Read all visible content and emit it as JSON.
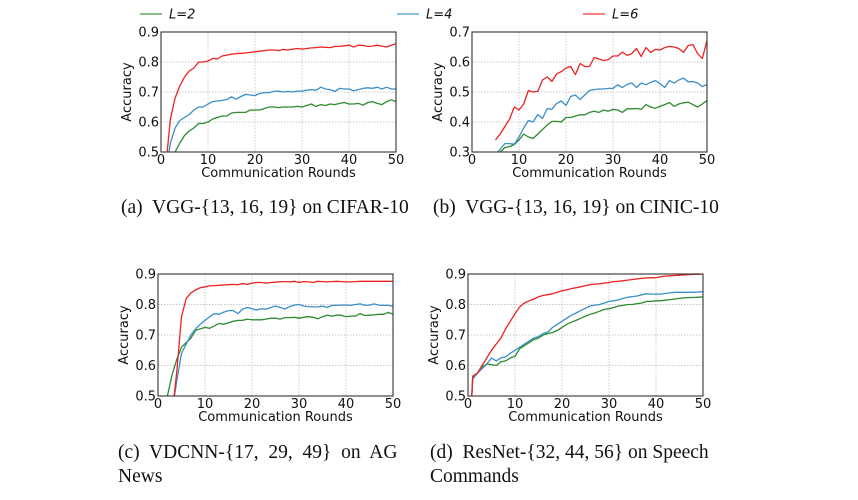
{
  "legend": [
    {
      "label": "L=2",
      "color": "#2e8b2e"
    },
    {
      "label": "L=4",
      "color": "#3a8fc8"
    },
    {
      "label": "L=6",
      "color": "#ee2222"
    }
  ],
  "chart_data": [
    {
      "type": "line",
      "id": "a",
      "caption": "(a)  VGG-{13, 16, 19} on CIFAR-10",
      "xlabel": "Communication Rounds",
      "ylabel": "Accuracy",
      "xlim": [
        0,
        50
      ],
      "ylim": [
        0.5,
        0.9
      ],
      "xticks": [
        0,
        10,
        20,
        30,
        40,
        50
      ],
      "yticks": [
        0.5,
        0.6,
        0.7,
        0.8,
        0.9
      ],
      "ytick_labels": [
        "0.5",
        "0.6",
        "0.7",
        "0.8",
        "0.9"
      ],
      "grid": true,
      "x": [
        1,
        2,
        3,
        4,
        5,
        6,
        7,
        8,
        9,
        10,
        11,
        12,
        13,
        14,
        15,
        16,
        17,
        18,
        19,
        20,
        21,
        22,
        23,
        24,
        25,
        26,
        27,
        28,
        29,
        30,
        31,
        32,
        33,
        34,
        35,
        36,
        37,
        38,
        39,
        40,
        41,
        42,
        43,
        44,
        45,
        46,
        47,
        48,
        49,
        50
      ],
      "series": [
        {
          "name": "L=2",
          "values": [
            0.4,
            0.46,
            0.5,
            0.53,
            0.555,
            0.57,
            0.58,
            0.595,
            0.595,
            0.6,
            0.61,
            0.615,
            0.62,
            0.62,
            0.63,
            0.632,
            0.632,
            0.632,
            0.64,
            0.64,
            0.64,
            0.645,
            0.65,
            0.65,
            0.648,
            0.65,
            0.65,
            0.65,
            0.652,
            0.65,
            0.655,
            0.66,
            0.652,
            0.658,
            0.655,
            0.66,
            0.658,
            0.662,
            0.665,
            0.66,
            0.66,
            0.662,
            0.656,
            0.665,
            0.668,
            0.662,
            0.658,
            0.668,
            0.674,
            0.668
          ]
        },
        {
          "name": "L=4",
          "values": [
            0.43,
            0.53,
            0.58,
            0.605,
            0.615,
            0.625,
            0.64,
            0.65,
            0.65,
            0.66,
            0.668,
            0.67,
            0.672,
            0.675,
            0.684,
            0.676,
            0.685,
            0.692,
            0.69,
            0.688,
            0.695,
            0.698,
            0.698,
            0.702,
            0.703,
            0.7,
            0.702,
            0.7,
            0.703,
            0.703,
            0.706,
            0.708,
            0.706,
            0.716,
            0.71,
            0.708,
            0.702,
            0.712,
            0.71,
            0.71,
            0.704,
            0.708,
            0.712,
            0.714,
            0.712,
            0.716,
            0.71,
            0.716,
            0.71,
            0.71
          ]
        },
        {
          "name": "L=6",
          "values": [
            0.45,
            0.61,
            0.68,
            0.72,
            0.75,
            0.77,
            0.78,
            0.8,
            0.8,
            0.803,
            0.812,
            0.81,
            0.82,
            0.823,
            0.826,
            0.828,
            0.829,
            0.83,
            0.832,
            0.834,
            0.836,
            0.838,
            0.84,
            0.84,
            0.838,
            0.842,
            0.84,
            0.843,
            0.845,
            0.843,
            0.845,
            0.847,
            0.848,
            0.85,
            0.849,
            0.848,
            0.852,
            0.852,
            0.854,
            0.856,
            0.85,
            0.856,
            0.855,
            0.852,
            0.853,
            0.856,
            0.853,
            0.85,
            0.856,
            0.861
          ]
        }
      ]
    },
    {
      "type": "line",
      "id": "b",
      "caption": "(b)  VGG-{13, 16, 19} on CINIC-10",
      "xlabel": "Communication Rounds",
      "ylabel": "Accuracy",
      "xlim": [
        0,
        50
      ],
      "ylim": [
        0.3,
        0.7
      ],
      "xticks": [
        0,
        10,
        20,
        30,
        40,
        50
      ],
      "yticks": [
        0.3,
        0.4,
        0.5,
        0.6,
        0.7
      ],
      "ytick_labels": [
        "0.3",
        "0.4",
        "0.5",
        "0.6",
        "0.7"
      ],
      "grid": true,
      "x": [
        5,
        6,
        7,
        8,
        9,
        10,
        11,
        12,
        13,
        14,
        15,
        16,
        17,
        18,
        19,
        20,
        21,
        22,
        23,
        24,
        25,
        26,
        27,
        28,
        29,
        30,
        31,
        32,
        33,
        34,
        35,
        36,
        37,
        38,
        39,
        40,
        41,
        42,
        43,
        44,
        45,
        46,
        47,
        48,
        49,
        50
      ],
      "series": [
        {
          "name": "L=2",
          "values": [
            0.29,
            0.3,
            0.315,
            0.318,
            0.325,
            0.34,
            0.36,
            0.35,
            0.345,
            0.36,
            0.375,
            0.39,
            0.402,
            0.402,
            0.4,
            0.415,
            0.415,
            0.42,
            0.424,
            0.424,
            0.432,
            0.436,
            0.432,
            0.44,
            0.436,
            0.442,
            0.44,
            0.432,
            0.444,
            0.444,
            0.445,
            0.442,
            0.458,
            0.45,
            0.446,
            0.452,
            0.458,
            0.465,
            0.452,
            0.46,
            0.464,
            0.466,
            0.458,
            0.45,
            0.46,
            0.472
          ]
        },
        {
          "name": "L=4",
          "values": [
            0.29,
            0.31,
            0.328,
            0.328,
            0.326,
            0.35,
            0.38,
            0.405,
            0.4,
            0.425,
            0.412,
            0.445,
            0.442,
            0.462,
            0.47,
            0.455,
            0.485,
            0.49,
            0.475,
            0.49,
            0.505,
            0.508,
            0.51,
            0.51,
            0.512,
            0.512,
            0.524,
            0.515,
            0.525,
            0.53,
            0.515,
            0.53,
            0.524,
            0.532,
            0.538,
            0.528,
            0.515,
            0.538,
            0.53,
            0.54,
            0.546,
            0.534,
            0.535,
            0.53,
            0.518,
            0.525
          ]
        },
        {
          "name": "L=6",
          "values": [
            0.34,
            0.36,
            0.385,
            0.41,
            0.45,
            0.44,
            0.46,
            0.505,
            0.5,
            0.502,
            0.54,
            0.55,
            0.535,
            0.56,
            0.568,
            0.58,
            0.585,
            0.558,
            0.595,
            0.585,
            0.585,
            0.615,
            0.61,
            0.605,
            0.608,
            0.62,
            0.62,
            0.633,
            0.622,
            0.628,
            0.645,
            0.618,
            0.648,
            0.632,
            0.642,
            0.64,
            0.648,
            0.652,
            0.65,
            0.645,
            0.632,
            0.655,
            0.658,
            0.628,
            0.612,
            0.672
          ]
        }
      ]
    },
    {
      "type": "line",
      "id": "c",
      "caption": "(c)  VDCNN-{17,  29,  49}  on  AG\nNews",
      "xlabel": "Communication Rounds",
      "ylabel": "Accuracy",
      "xlim": [
        0,
        50
      ],
      "ylim": [
        0.5,
        0.9
      ],
      "xticks": [
        0,
        10,
        20,
        30,
        40,
        50
      ],
      "yticks": [
        0.5,
        0.6,
        0.7,
        0.8,
        0.9
      ],
      "ytick_labels": [
        "0.5",
        "0.6",
        "0.7",
        "0.8",
        "0.9"
      ],
      "grid": true,
      "x": [
        2,
        3,
        4,
        5,
        6,
        7,
        8,
        9,
        10,
        11,
        12,
        13,
        14,
        15,
        16,
        17,
        18,
        19,
        20,
        21,
        22,
        23,
        24,
        25,
        26,
        27,
        28,
        29,
        30,
        31,
        32,
        33,
        34,
        35,
        36,
        37,
        38,
        39,
        40,
        41,
        42,
        43,
        44,
        45,
        46,
        47,
        48,
        49,
        50
      ],
      "series": [
        {
          "name": "L=2",
          "values": [
            0.5,
            0.57,
            0.62,
            0.66,
            0.675,
            0.69,
            0.715,
            0.72,
            0.725,
            0.722,
            0.73,
            0.738,
            0.735,
            0.74,
            0.745,
            0.748,
            0.748,
            0.752,
            0.75,
            0.75,
            0.75,
            0.752,
            0.755,
            0.755,
            0.752,
            0.757,
            0.757,
            0.758,
            0.755,
            0.758,
            0.76,
            0.758,
            0.753,
            0.76,
            0.765,
            0.762,
            0.765,
            0.765,
            0.76,
            0.762,
            0.762,
            0.77,
            0.764,
            0.765,
            0.766,
            0.768,
            0.768,
            0.774,
            0.768
          ]
        },
        {
          "name": "L=4",
          "values": [
            0.4,
            0.45,
            0.55,
            0.64,
            0.67,
            0.7,
            0.72,
            0.735,
            0.748,
            0.76,
            0.77,
            0.768,
            0.775,
            0.78,
            0.78,
            0.77,
            0.785,
            0.79,
            0.786,
            0.782,
            0.786,
            0.785,
            0.79,
            0.795,
            0.79,
            0.785,
            0.793,
            0.798,
            0.8,
            0.795,
            0.793,
            0.792,
            0.792,
            0.795,
            0.79,
            0.797,
            0.797,
            0.798,
            0.798,
            0.797,
            0.8,
            0.802,
            0.797,
            0.798,
            0.802,
            0.798,
            0.797,
            0.797,
            0.794
          ]
        },
        {
          "name": "L=6",
          "values": [
            0.3,
            0.44,
            0.58,
            0.76,
            0.82,
            0.838,
            0.848,
            0.855,
            0.858,
            0.861,
            0.862,
            0.863,
            0.864,
            0.865,
            0.866,
            0.865,
            0.869,
            0.866,
            0.87,
            0.872,
            0.872,
            0.87,
            0.872,
            0.873,
            0.875,
            0.875,
            0.874,
            0.876,
            0.872,
            0.875,
            0.874,
            0.872,
            0.876,
            0.875,
            0.874,
            0.875,
            0.876,
            0.875,
            0.874,
            0.874,
            0.875,
            0.876,
            0.876,
            0.876,
            0.876,
            0.876,
            0.876,
            0.876,
            0.876
          ]
        }
      ]
    },
    {
      "type": "line",
      "id": "d",
      "caption": "(d)  ResNet-{32, 44, 56} on Speech\nCommands",
      "xlabel": "Communication Rounds",
      "ylabel": "Accuracy",
      "xlim": [
        0,
        50
      ],
      "ylim": [
        0.5,
        0.9
      ],
      "xticks": [
        0,
        10,
        20,
        30,
        40,
        50
      ],
      "yticks": [
        0.5,
        0.6,
        0.7,
        0.8,
        0.9
      ],
      "ytick_labels": [
        "0.5",
        "0.6",
        "0.7",
        "0.8",
        "0.9"
      ],
      "grid": true,
      "x": [
        0.8,
        1,
        2,
        3,
        4,
        5,
        6,
        7,
        8,
        9,
        10,
        11,
        12,
        13,
        14,
        15,
        16,
        17,
        18,
        19,
        20,
        21,
        22,
        23,
        24,
        25,
        26,
        27,
        28,
        29,
        30,
        31,
        32,
        33,
        34,
        35,
        36,
        37,
        38,
        39,
        40,
        41,
        42,
        43,
        44,
        45,
        46,
        47,
        48,
        49,
        50
      ],
      "series": [
        {
          "name": "L=2",
          "values": [
            0.5,
            0.56,
            0.575,
            0.595,
            0.605,
            0.603,
            0.6,
            0.612,
            0.615,
            0.625,
            0.63,
            0.655,
            0.665,
            0.675,
            0.685,
            0.69,
            0.7,
            0.705,
            0.708,
            0.715,
            0.725,
            0.735,
            0.742,
            0.748,
            0.755,
            0.762,
            0.768,
            0.772,
            0.778,
            0.784,
            0.786,
            0.79,
            0.795,
            0.797,
            0.8,
            0.8,
            0.803,
            0.805,
            0.81,
            0.81,
            0.812,
            0.812,
            0.814,
            0.816,
            0.818,
            0.82,
            0.822,
            0.823,
            0.823,
            0.824,
            0.825
          ]
        },
        {
          "name": "L=4",
          "values": [
            0.5,
            0.555,
            0.575,
            0.59,
            0.605,
            0.625,
            0.615,
            0.625,
            0.628,
            0.64,
            0.65,
            0.66,
            0.67,
            0.68,
            0.69,
            0.695,
            0.705,
            0.71,
            0.725,
            0.735,
            0.745,
            0.755,
            0.765,
            0.772,
            0.78,
            0.788,
            0.795,
            0.798,
            0.8,
            0.805,
            0.81,
            0.812,
            0.815,
            0.82,
            0.824,
            0.826,
            0.828,
            0.832,
            0.835,
            0.834,
            0.834,
            0.834,
            0.836,
            0.838,
            0.84,
            0.84,
            0.84,
            0.84,
            0.84,
            0.841,
            0.842
          ]
        },
        {
          "name": "L=6",
          "values": [
            0.5,
            0.565,
            0.575,
            0.6,
            0.625,
            0.65,
            0.67,
            0.69,
            0.72,
            0.745,
            0.77,
            0.792,
            0.805,
            0.812,
            0.818,
            0.825,
            0.83,
            0.832,
            0.835,
            0.84,
            0.845,
            0.848,
            0.852,
            0.855,
            0.858,
            0.862,
            0.865,
            0.867,
            0.868,
            0.87,
            0.872,
            0.875,
            0.876,
            0.878,
            0.88,
            0.882,
            0.884,
            0.886,
            0.887,
            0.888,
            0.888,
            0.891,
            0.893,
            0.894,
            0.895,
            0.896,
            0.897,
            0.898,
            0.899,
            0.899,
            0.9
          ]
        }
      ]
    }
  ]
}
